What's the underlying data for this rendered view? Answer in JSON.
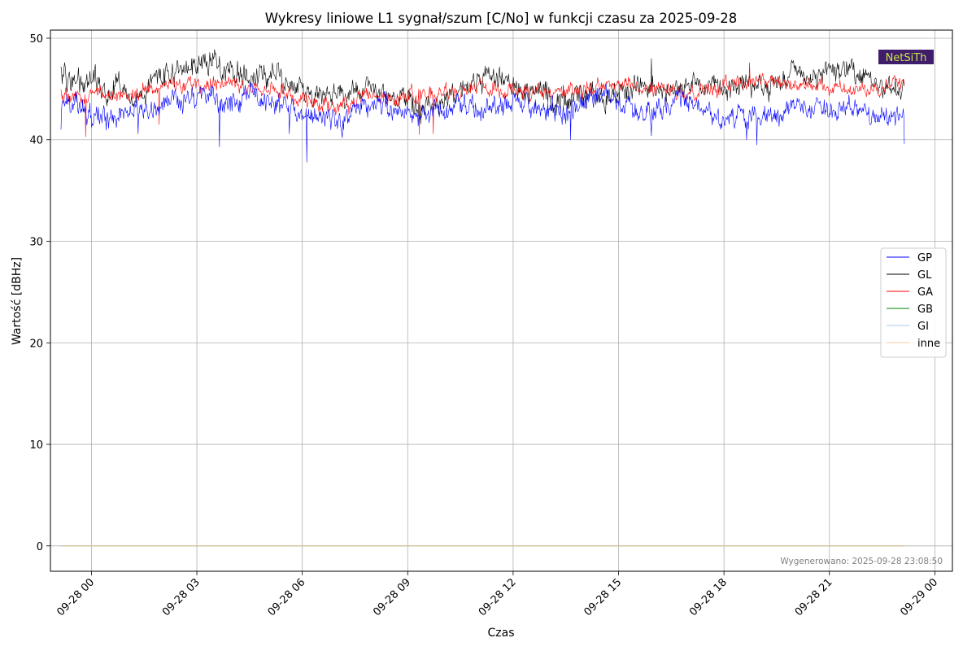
{
  "chart_data": {
    "type": "line",
    "title": "Wykresy liniowe L1 sygnał/szum [C/No] w funkcji czasu za 2025-09-28",
    "xlabel": "Czas",
    "ylabel": "Wartość [dBHz]",
    "x_range": [
      "2025-09-27 22:50",
      "2025-09-29 00:30"
    ],
    "ylim": [
      -2.5,
      50.8
    ],
    "x_ticks": [
      "09-28 00",
      "09-28 03",
      "09-28 06",
      "09-28 09",
      "09-28 12",
      "09-28 15",
      "09-28 18",
      "09-28 21",
      "09-29 00"
    ],
    "y_ticks": [
      "0",
      "10",
      "20",
      "30",
      "40",
      "50"
    ],
    "grid": true,
    "legend_position": "right",
    "series": [
      {
        "name": "GP",
        "color": "#0000ff",
        "start": "2025-09-27 23:08",
        "end": "2025-09-28 23:08",
        "anchors": [
          [
            0,
            44
          ],
          [
            0.3,
            43.5
          ],
          [
            0.6,
            43.2
          ],
          [
            0.9,
            42.5
          ],
          [
            1.2,
            42.3
          ],
          [
            1.5,
            42
          ],
          [
            1.8,
            42.8
          ],
          [
            2.2,
            43
          ],
          [
            2.6,
            43.2
          ],
          [
            3,
            43.8
          ],
          [
            3.5,
            44
          ],
          [
            4,
            44.2
          ],
          [
            4.5,
            43.5
          ],
          [
            5,
            43.5
          ],
          [
            5.5,
            44.2
          ],
          [
            6,
            43.8
          ],
          [
            6.5,
            43
          ],
          [
            7,
            42.8
          ],
          [
            7.5,
            42.5
          ],
          [
            8,
            41.8
          ],
          [
            8.5,
            42.5
          ],
          [
            9,
            43.5
          ],
          [
            9.5,
            43
          ],
          [
            10,
            42.5
          ],
          [
            10.5,
            42.3
          ],
          [
            11,
            42.8
          ],
          [
            11.5,
            43.3
          ],
          [
            12,
            43
          ],
          [
            12.5,
            43.2
          ],
          [
            13,
            44
          ],
          [
            13.5,
            43.5
          ],
          [
            14,
            43
          ],
          [
            14.5,
            42.5
          ],
          [
            15,
            43.5
          ],
          [
            15.5,
            44.5
          ],
          [
            16,
            43.5
          ],
          [
            16.5,
            42.8
          ],
          [
            17,
            43.2
          ],
          [
            17.5,
            44
          ],
          [
            18,
            43.5
          ],
          [
            18.5,
            42.8
          ],
          [
            19,
            42
          ],
          [
            19.5,
            42.5
          ],
          [
            20,
            42
          ],
          [
            20.5,
            42.5
          ],
          [
            21,
            43.5
          ],
          [
            21.5,
            43.2
          ],
          [
            22,
            43
          ],
          [
            22.5,
            43.5
          ],
          [
            23,
            42.3
          ],
          [
            24,
            42.2
          ]
        ],
        "spikes": [
          [
            0,
            41
          ],
          [
            2.2,
            40.6
          ],
          [
            4.5,
            39.3
          ],
          [
            6.5,
            40.6
          ],
          [
            7,
            37.8
          ],
          [
            8,
            40.2
          ],
          [
            14.5,
            40
          ],
          [
            16.8,
            40.4
          ],
          [
            19.5,
            40
          ],
          [
            19.8,
            39.5
          ],
          [
            24,
            39.6
          ]
        ],
        "amplitude": 0.9
      },
      {
        "name": "GL",
        "color": "#000000",
        "start": "2025-09-27 23:08",
        "end": "2025-09-28 23:08",
        "anchors": [
          [
            0,
            47
          ],
          [
            0.3,
            45.5
          ],
          [
            0.6,
            45
          ],
          [
            0.9,
            46.5
          ],
          [
            1.2,
            44.5
          ],
          [
            1.5,
            45.5
          ],
          [
            1.8,
            44.5
          ],
          [
            2.2,
            44
          ],
          [
            2.6,
            45.5
          ],
          [
            3,
            46.5
          ],
          [
            3.5,
            46.8
          ],
          [
            4,
            47.5
          ],
          [
            4.5,
            47.5
          ],
          [
            5,
            46.8
          ],
          [
            5.5,
            46
          ],
          [
            6,
            46.5
          ],
          [
            6.5,
            45.5
          ],
          [
            7,
            44.5
          ],
          [
            7.5,
            44
          ],
          [
            8,
            44.5
          ],
          [
            8.5,
            45
          ],
          [
            9,
            45
          ],
          [
            9.5,
            44
          ],
          [
            10,
            43.5
          ],
          [
            10.5,
            43.3
          ],
          [
            11,
            44
          ],
          [
            11.5,
            45.5
          ],
          [
            12,
            46.2
          ],
          [
            12.5,
            45.8
          ],
          [
            13,
            45
          ],
          [
            13.5,
            44.5
          ],
          [
            14,
            44
          ],
          [
            14.5,
            44
          ],
          [
            15,
            44.5
          ],
          [
            15.5,
            44.2
          ],
          [
            16,
            44.5
          ],
          [
            16.5,
            45.5
          ],
          [
            17,
            45
          ],
          [
            17.5,
            44.5
          ],
          [
            18,
            45.5
          ],
          [
            18.5,
            45
          ],
          [
            19,
            45
          ],
          [
            19.5,
            45.5
          ],
          [
            20,
            45.5
          ],
          [
            20.5,
            46
          ],
          [
            21,
            46.5
          ],
          [
            21.5,
            46.5
          ],
          [
            22,
            46.8
          ],
          [
            22.5,
            47
          ],
          [
            23,
            45.5
          ],
          [
            24,
            45
          ]
        ],
        "spikes": [
          [
            0.1,
            47.6
          ],
          [
            4.5,
            48.2
          ],
          [
            16.8,
            48
          ],
          [
            22.5,
            48
          ]
        ],
        "amplitude": 1.0
      },
      {
        "name": "GA",
        "color": "#ff0000",
        "start": "2025-09-27 23:08",
        "end": "2025-09-28 23:08",
        "anchors": [
          [
            0,
            44.3
          ],
          [
            0.3,
            44.3
          ],
          [
            0.6,
            44
          ],
          [
            0.9,
            44.5
          ],
          [
            1.2,
            44.5
          ],
          [
            1.5,
            44.3
          ],
          [
            1.8,
            44
          ],
          [
            2.2,
            44.5
          ],
          [
            2.6,
            45
          ],
          [
            3,
            45.3
          ],
          [
            3.5,
            45.3
          ],
          [
            4,
            45.3
          ],
          [
            4.5,
            45.5
          ],
          [
            5,
            45.2
          ],
          [
            5.5,
            45
          ],
          [
            6,
            45
          ],
          [
            6.5,
            44.5
          ],
          [
            7,
            43.8
          ],
          [
            7.5,
            43.5
          ],
          [
            8,
            43.2
          ],
          [
            8.5,
            44
          ],
          [
            9,
            44.5
          ],
          [
            9.5,
            44
          ],
          [
            10,
            44.5
          ],
          [
            10.5,
            44.5
          ],
          [
            11,
            44.8
          ],
          [
            11.5,
            44.8
          ],
          [
            12,
            45.2
          ],
          [
            12.5,
            45
          ],
          [
            13,
            44.8
          ],
          [
            13.5,
            44.5
          ],
          [
            14,
            44.5
          ],
          [
            14.5,
            44.8
          ],
          [
            15,
            45
          ],
          [
            15.5,
            45.3
          ],
          [
            16,
            45.5
          ],
          [
            16.5,
            45.2
          ],
          [
            17,
            45
          ],
          [
            17.5,
            44.8
          ],
          [
            18,
            44.5
          ],
          [
            18.5,
            45
          ],
          [
            19,
            45.3
          ],
          [
            19.5,
            45.8
          ],
          [
            20,
            45.8
          ],
          [
            20.5,
            45.7
          ],
          [
            21,
            45.5
          ],
          [
            21.5,
            45.3
          ],
          [
            22,
            45.3
          ],
          [
            22.5,
            45
          ],
          [
            23,
            45
          ],
          [
            24,
            45.5
          ]
        ],
        "spikes": [
          [
            0.7,
            40.3
          ],
          [
            2.8,
            41.5
          ],
          [
            10.2,
            40.5
          ],
          [
            10.6,
            40.6
          ],
          [
            19.6,
            47.6
          ]
        ],
        "amplitude": 0.65
      },
      {
        "name": "GB",
        "color": "#008000",
        "start": "2025-09-27 23:08",
        "end": "2025-09-28 23:08",
        "constant": 0
      },
      {
        "name": "GI",
        "color": "#a8c8ec",
        "start": "2025-09-27 23:08",
        "end": "2025-09-28 23:08",
        "constant": 0
      },
      {
        "name": "inne",
        "color": "#f7c8a0",
        "start": "2025-09-27 23:08",
        "end": "2025-09-28 23:08",
        "constant": 0
      }
    ],
    "annotation": "Wygenerowano: 2025-09-28 23:08:50",
    "logo": {
      "text": "NetSiTh",
      "background": "#3f1d6b",
      "color": "#c8e64a"
    }
  }
}
